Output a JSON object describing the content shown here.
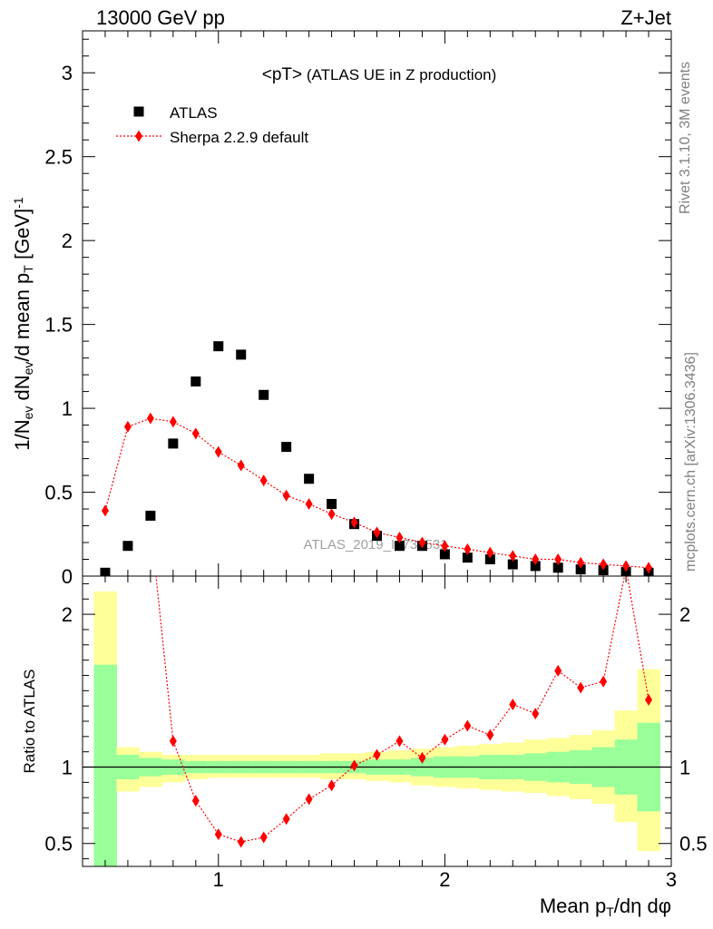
{
  "header": {
    "left": "13000 GeV pp",
    "right": "Z+Jet"
  },
  "side": {
    "rivet": "Rivet 3.1.10,  3M events",
    "mcplots": "mcplots.cern.ch [arXiv:1306.3436]"
  },
  "chart_data": [
    {
      "type": "scatter",
      "panel": "main",
      "title_main": "<pT>",
      "title_sub": " (ATLAS UE in Z production)",
      "watermark": "ATLAS_2019_I1736531",
      "ylabel": "1/N_ev dN_ev/d mean p_T [GeV]^-1",
      "xlim": [
        0.4,
        3.0
      ],
      "ylim": [
        0,
        3.25
      ],
      "x_ticks": [
        1,
        2,
        3
      ],
      "y_ticks": [
        0,
        0.5,
        1,
        1.5,
        2,
        2.5,
        3
      ],
      "y_tick_labels": [
        "0",
        "0.5",
        "1",
        "1.5",
        "2",
        "2.5",
        "3"
      ],
      "legend_position": "top-left",
      "series": [
        {
          "name": "ATLAS",
          "marker": "square",
          "color": "#000000",
          "x": [
            0.5,
            0.6,
            0.7,
            0.8,
            0.9,
            1.0,
            1.1,
            1.2,
            1.3,
            1.4,
            1.5,
            1.6,
            1.7,
            1.8,
            1.9,
            2.0,
            2.1,
            2.2,
            2.3,
            2.4,
            2.5,
            2.6,
            2.7,
            2.8,
            2.9
          ],
          "values": [
            0.02,
            0.18,
            0.36,
            0.79,
            1.16,
            1.37,
            1.32,
            1.08,
            0.77,
            0.58,
            0.43,
            0.31,
            0.24,
            0.18,
            0.18,
            0.13,
            0.11,
            0.1,
            0.07,
            0.06,
            0.05,
            0.04,
            0.035,
            0.025,
            0.02
          ]
        },
        {
          "name": "Sherpa 2.2.9 default",
          "marker": "diamond",
          "color": "#ff0000",
          "x": [
            0.5,
            0.6,
            0.7,
            0.8,
            0.9,
            1.0,
            1.1,
            1.2,
            1.3,
            1.4,
            1.5,
            1.6,
            1.7,
            1.8,
            1.9,
            2.0,
            2.1,
            2.2,
            2.3,
            2.4,
            2.5,
            2.6,
            2.7,
            2.8,
            2.9
          ],
          "values": [
            0.39,
            0.89,
            0.94,
            0.92,
            0.85,
            0.74,
            0.66,
            0.57,
            0.48,
            0.43,
            0.37,
            0.32,
            0.26,
            0.23,
            0.2,
            0.18,
            0.16,
            0.14,
            0.12,
            0.1,
            0.1,
            0.08,
            0.07,
            0.06,
            0.05
          ]
        }
      ]
    },
    {
      "type": "line",
      "panel": "ratio",
      "ylabel": "Ratio to ATLAS",
      "xlabel": "Mean p_T/dη dφ",
      "xlim": [
        0.4,
        3.0
      ],
      "ylim": [
        0.35,
        2.25
      ],
      "x_ticks": [
        1,
        2,
        3
      ],
      "x_tick_labels": [
        "1",
        "2",
        "3"
      ],
      "y_ticks": [
        0.5,
        1,
        2
      ],
      "y_tick_labels": [
        "0.5",
        "1",
        "2"
      ],
      "bands": {
        "bin_edges": [
          0.45,
          0.55,
          0.65,
          0.75,
          0.85,
          0.95,
          1.05,
          1.15,
          1.25,
          1.35,
          1.45,
          1.55,
          1.65,
          1.75,
          1.85,
          1.95,
          2.05,
          2.15,
          2.25,
          2.35,
          2.45,
          2.55,
          2.65,
          2.75,
          2.85,
          2.95
        ],
        "yellow_lower": [
          0.35,
          0.84,
          0.87,
          0.9,
          0.92,
          0.93,
          0.93,
          0.93,
          0.93,
          0.93,
          0.92,
          0.92,
          0.91,
          0.9,
          0.88,
          0.87,
          0.86,
          0.85,
          0.84,
          0.83,
          0.81,
          0.79,
          0.76,
          0.64,
          0.45,
          0.56
        ],
        "yellow_upper": [
          2.15,
          1.13,
          1.1,
          1.08,
          1.08,
          1.08,
          1.08,
          1.08,
          1.08,
          1.08,
          1.09,
          1.09,
          1.1,
          1.11,
          1.12,
          1.13,
          1.14,
          1.15,
          1.16,
          1.18,
          1.19,
          1.21,
          1.24,
          1.37,
          1.64,
          1.62
        ],
        "green_lower": [
          0.35,
          0.92,
          0.94,
          0.95,
          0.96,
          0.96,
          0.96,
          0.96,
          0.96,
          0.96,
          0.96,
          0.96,
          0.95,
          0.95,
          0.94,
          0.93,
          0.93,
          0.92,
          0.92,
          0.91,
          0.9,
          0.89,
          0.87,
          0.82,
          0.71,
          0.77
        ],
        "green_upper": [
          1.67,
          1.08,
          1.06,
          1.05,
          1.04,
          1.04,
          1.04,
          1.04,
          1.04,
          1.04,
          1.04,
          1.04,
          1.05,
          1.05,
          1.06,
          1.07,
          1.07,
          1.08,
          1.08,
          1.09,
          1.1,
          1.11,
          1.13,
          1.18,
          1.29,
          1.28
        ],
        "yellow_color": "#ffff99",
        "green_color": "#99ff99"
      },
      "series": [
        {
          "name": "Sherpa 2.2.9 default",
          "color": "#ff0000",
          "x": [
            0.7,
            0.8,
            0.9,
            1.0,
            1.1,
            1.2,
            1.3,
            1.4,
            1.5,
            1.6,
            1.7,
            1.8,
            1.9,
            2.0,
            2.1,
            2.2,
            2.3,
            2.4,
            2.5,
            2.6,
            2.7,
            2.8,
            2.9
          ],
          "values": [
            2.6,
            1.17,
            0.78,
            0.56,
            0.51,
            0.54,
            0.66,
            0.79,
            0.88,
            1.01,
            1.08,
            1.17,
            1.06,
            1.18,
            1.27,
            1.21,
            1.41,
            1.35,
            1.63,
            1.52,
            1.56,
            2.3,
            1.44
          ]
        }
      ]
    }
  ]
}
